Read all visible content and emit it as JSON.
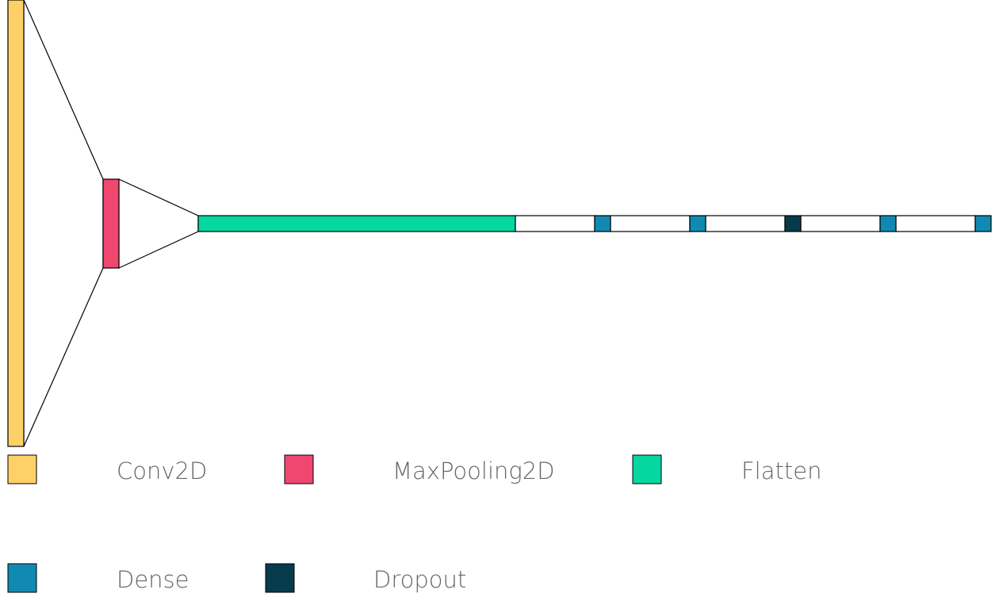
{
  "legend": [
    {
      "key": "conv2d",
      "label": "Conv2D",
      "color": "#FDD167"
    },
    {
      "key": "maxpooling2d",
      "label": "MaxPooling2D",
      "color": "#EF476F"
    },
    {
      "key": "flatten",
      "label": "Flatten",
      "color": "#06D6A0"
    },
    {
      "key": "dense",
      "label": "Dense",
      "color": "#118AB2"
    },
    {
      "key": "dropout",
      "label": "Dropout",
      "color": "#073B4C"
    }
  ],
  "layers": [
    "conv2d",
    "maxpooling2d",
    "flatten",
    "dense",
    "dense",
    "dense",
    "dropout",
    "dense",
    "dense"
  ],
  "colors": {
    "outline": "#000000",
    "connector_fill": "#ffffff",
    "label": "#666666"
  }
}
